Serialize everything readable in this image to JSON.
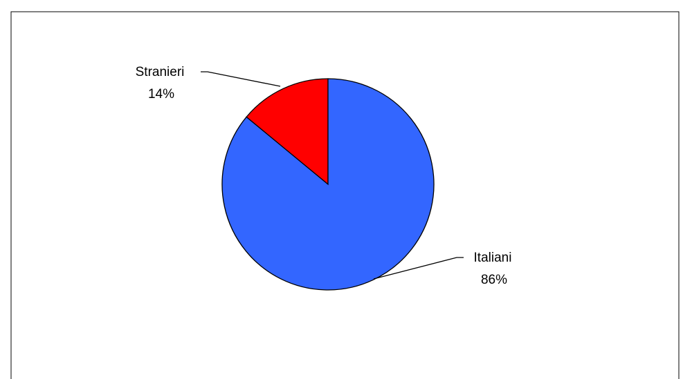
{
  "chart_data": {
    "type": "pie",
    "categories": [
      "Stranieri",
      "Italiani"
    ],
    "values": [
      14,
      86
    ],
    "value_labels": [
      "14%",
      "86%"
    ],
    "colors": [
      "#ff0000",
      "#3366ff"
    ],
    "start_angle": "12 o'clock",
    "direction": "counter-clockwise from top for first slice",
    "legend": "none",
    "title": ""
  }
}
